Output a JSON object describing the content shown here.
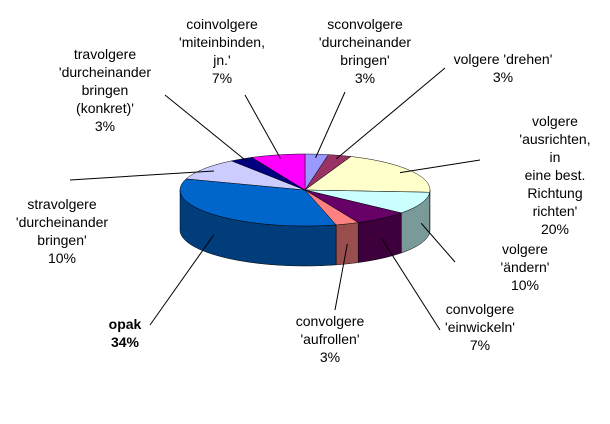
{
  "chart_data": {
    "type": "pie",
    "categories": [
      "sconvolgere\n'durcheinander\nbringen'",
      "volgere 'drehen'",
      "volgere\n'ausrichten, in\neine best.\nRichtung richten'",
      "volgere 'ändern'",
      "convolgere\n'einwickeln'",
      "convolgere\n'aufrollen'",
      "opak",
      "stravolgere\n'durcheinander\nbringen'",
      "travolgere\n'durcheinander\nbringen\n(konkret)'",
      "coinvolgere\n'miteinbinden,\njn.'"
    ],
    "values": [
      3,
      3,
      20,
      10,
      7,
      3,
      34,
      10,
      3,
      7
    ],
    "value_labels": [
      "3%",
      "3%",
      "20%",
      "10%",
      "7%",
      "3%",
      "34%",
      "10%",
      "3%",
      "7%"
    ],
    "colors": [
      "#9999ff",
      "#993366",
      "#ffffcc",
      "#ccffff",
      "#660066",
      "#ff8080",
      "#0066cc",
      "#ccccff",
      "#000080",
      "#ff00ff"
    ]
  }
}
